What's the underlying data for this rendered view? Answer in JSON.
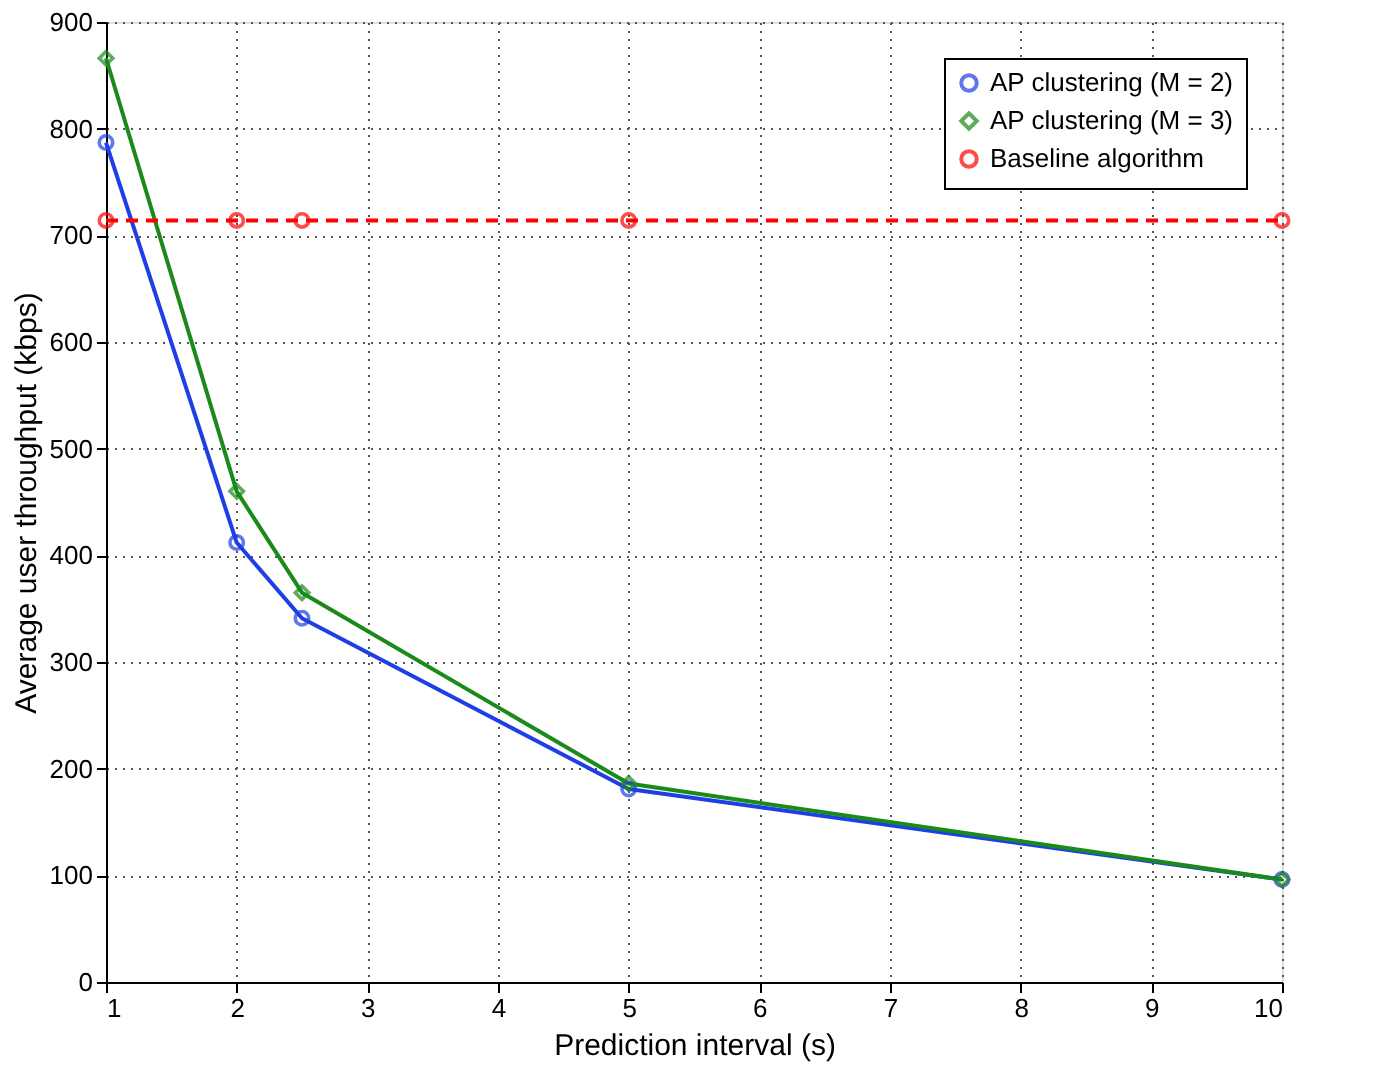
{
  "chart_data": {
    "type": "line",
    "xlabel": "Prediction interval (s)",
    "ylabel": "Average user throughput (kbps)",
    "x": [
      1,
      2,
      2.5,
      5,
      10
    ],
    "series": [
      {
        "name": "AP clustering (M = 2)",
        "color": "#1f3fe6",
        "values": [
          787,
          412,
          341,
          181,
          96
        ],
        "marker": "circle",
        "line_style": "solid"
      },
      {
        "name": "AP clustering (M = 3)",
        "color": "#1a8a1a",
        "values": [
          866,
          460,
          365,
          186,
          96
        ],
        "marker": "diamond",
        "line_style": "solid"
      },
      {
        "name": "Baseline algorithm",
        "color": "#ff0000",
        "values": [
          714,
          714,
          714,
          714,
          714
        ],
        "marker": "circle",
        "line_style": "dashed"
      }
    ],
    "xlim": [
      1,
      10
    ],
    "xticks": [
      1,
      2,
      3,
      4,
      5,
      6,
      7,
      8,
      9,
      10
    ],
    "ylim": [
      0,
      900
    ],
    "yticks": [
      0,
      100,
      200,
      300,
      400,
      500,
      600,
      700,
      800,
      900
    ],
    "grid": true,
    "legend": "top right"
  }
}
